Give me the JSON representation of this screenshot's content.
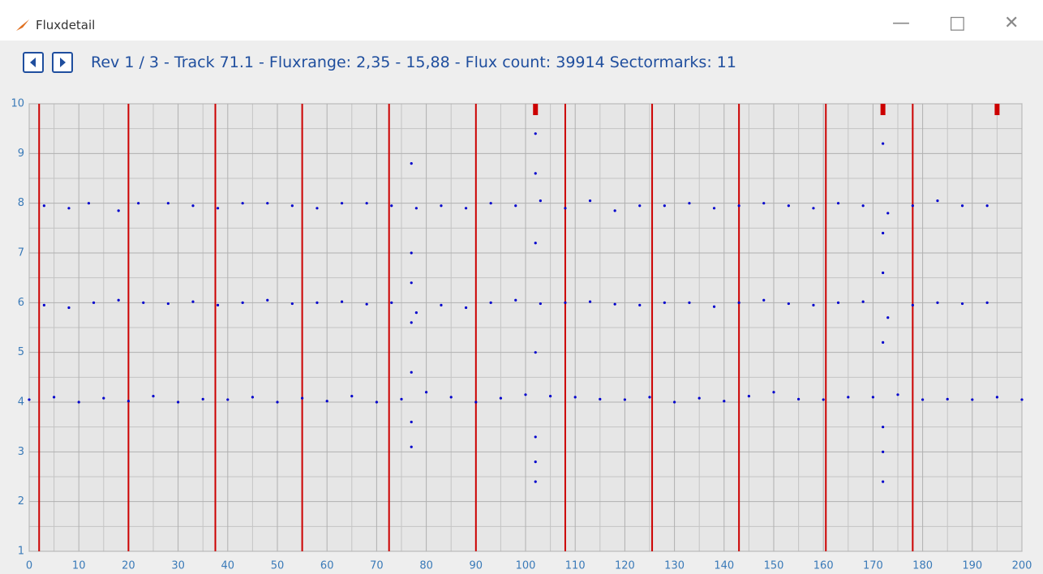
{
  "window": {
    "title": "Fluxdetail"
  },
  "header": {
    "text": "Rev 1 / 3 - Track 71.1 - Fluxrange: 2,35 - 15,88 - Flux count: 39914 Sectormarks: 11"
  },
  "chart_data": {
    "type": "scatter",
    "xlim": [
      0,
      200
    ],
    "xticks": [
      0,
      10,
      20,
      30,
      40,
      50,
      60,
      70,
      80,
      90,
      100,
      110,
      120,
      130,
      140,
      150,
      160,
      170,
      180,
      190,
      200
    ],
    "ylim": [
      1,
      10
    ],
    "yticks": [
      1,
      2,
      3,
      4,
      5,
      6,
      7,
      8,
      9,
      10
    ],
    "grid": true,
    "sector_marks": [
      2,
      20,
      37.5,
      55,
      72.5,
      90,
      108,
      125.5,
      143,
      160.5,
      178
    ],
    "sector_color": "#cc0000",
    "top_marks": [
      102,
      172,
      195
    ],
    "series": [
      {
        "color": "#0000cc",
        "x": [
          0,
          5,
          10,
          15,
          20,
          25,
          30,
          35,
          40,
          45,
          50,
          55,
          60,
          65,
          70,
          75,
          80,
          85,
          90,
          95,
          100,
          105,
          110,
          115,
          120,
          125,
          130,
          135,
          140,
          145,
          150,
          155,
          160,
          165,
          170,
          175,
          180,
          185,
          190,
          195,
          200,
          3,
          8,
          13,
          18,
          23,
          28,
          33,
          38,
          43,
          48,
          53,
          58,
          63,
          68,
          73,
          78,
          83,
          88,
          93,
          98,
          103,
          108,
          113,
          118,
          123,
          128,
          133,
          138,
          143,
          148,
          153,
          158,
          163,
          168,
          173,
          178,
          183,
          188,
          193,
          3,
          8,
          12,
          18,
          22,
          28,
          33,
          38,
          43,
          48,
          53,
          58,
          63,
          68,
          73,
          78,
          83,
          88,
          93,
          98,
          103,
          108,
          113,
          118,
          123,
          128,
          133,
          138,
          143,
          148,
          153,
          158,
          163,
          168,
          173,
          178,
          183,
          188,
          193,
          77,
          77,
          77,
          77,
          77,
          77,
          77,
          102,
          102,
          102,
          102,
          102,
          102,
          102,
          172,
          172,
          172,
          172,
          172,
          172,
          172
        ],
        "values": [
          4.05,
          4.1,
          4.0,
          4.08,
          4.02,
          4.12,
          4.0,
          4.06,
          4.05,
          4.1,
          4.0,
          4.08,
          4.02,
          4.12,
          4.0,
          4.06,
          4.2,
          4.1,
          4.0,
          4.08,
          4.15,
          4.12,
          4.1,
          4.06,
          4.05,
          4.1,
          4.0,
          4.08,
          4.02,
          4.12,
          4.2,
          4.06,
          4.05,
          4.1,
          4.1,
          4.15,
          4.05,
          4.06,
          4.05,
          4.1,
          4.05,
          5.95,
          5.9,
          6.0,
          6.05,
          6.0,
          5.98,
          6.02,
          5.95,
          6.0,
          6.05,
          5.98,
          6.0,
          6.02,
          5.97,
          6.0,
          5.8,
          5.95,
          5.9,
          6.0,
          6.05,
          5.98,
          6.0,
          6.02,
          5.97,
          5.95,
          6.0,
          6.0,
          5.92,
          6.0,
          6.05,
          5.98,
          5.95,
          6.0,
          6.02,
          5.7,
          5.95,
          6.0,
          5.98,
          6.0,
          7.95,
          7.9,
          8.0,
          7.85,
          8.0,
          8.0,
          7.95,
          7.9,
          8.0,
          8.0,
          7.95,
          7.9,
          8.0,
          8.0,
          7.95,
          7.9,
          7.95,
          7.9,
          8.0,
          7.95,
          8.05,
          7.9,
          8.05,
          7.85,
          7.95,
          7.95,
          8.0,
          7.9,
          7.95,
          8.0,
          7.95,
          7.9,
          8.0,
          7.95,
          7.8,
          7.95,
          8.05,
          7.95,
          7.95,
          3.1,
          3.6,
          4.6,
          5.6,
          6.4,
          7.0,
          8.8,
          2.4,
          2.8,
          3.3,
          5.0,
          7.2,
          8.6,
          9.4,
          2.4,
          3.0,
          3.5,
          5.2,
          6.6,
          7.4,
          9.2
        ]
      }
    ]
  }
}
